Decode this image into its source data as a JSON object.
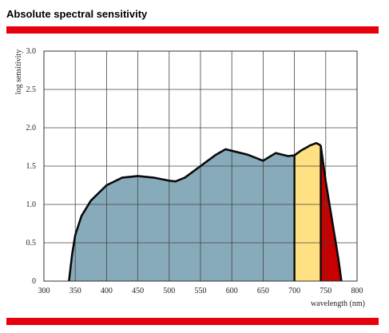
{
  "chart_data": {
    "type": "area",
    "title": "Absolute spectral sensitivity",
    "x_label": "wavelength (nm)",
    "y_label": "log sensitivity",
    "xlim": [
      300,
      800
    ],
    "ylim": [
      0,
      3
    ],
    "xticks": [
      300,
      350,
      400,
      450,
      500,
      550,
      600,
      650,
      700,
      750,
      800
    ],
    "yticks": [
      0,
      0.5,
      {
        "value": 1,
        "label": "1.0"
      },
      1.5,
      {
        "value": 2,
        "label": "2.0"
      },
      2.5,
      {
        "value": 3,
        "label": "3.0"
      }
    ],
    "grid": true,
    "series": [
      {
        "color": "#87abbb",
        "x": [
          340,
          345,
          350,
          360,
          375,
          400,
          425,
          450,
          475,
          500,
          510,
          525,
          550,
          575,
          590,
          600,
          625,
          650,
          670,
          690,
          700
        ],
        "values": [
          0,
          0.35,
          0.6,
          0.85,
          1.05,
          1.25,
          1.35,
          1.37,
          1.35,
          1.31,
          1.3,
          1.35,
          1.5,
          1.65,
          1.72,
          1.7,
          1.65,
          1.57,
          1.67,
          1.63,
          1.64
        ]
      },
      {
        "color": "#ffe082",
        "x": [
          700,
          710,
          725,
          735,
          742
        ],
        "values": [
          1.64,
          1.7,
          1.77,
          1.8,
          1.77
        ]
      },
      {
        "color": "#c80000",
        "x": [
          742,
          750,
          760,
          770,
          775
        ],
        "values": [
          1.77,
          1.3,
          0.8,
          0.3,
          0
        ]
      }
    ]
  }
}
